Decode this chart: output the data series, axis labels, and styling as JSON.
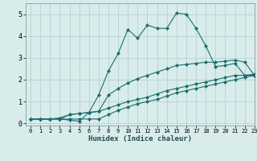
{
  "xlabel": "Humidex (Indice chaleur)",
  "ylabel": "",
  "bg_color": "#d8ecec",
  "grid_color": "#b0cccc",
  "line_color": "#1a6e6a",
  "xlim": [
    -0.5,
    23
  ],
  "ylim": [
    -0.1,
    5.5
  ],
  "xticks": [
    0,
    1,
    2,
    3,
    4,
    5,
    6,
    7,
    8,
    9,
    10,
    11,
    12,
    13,
    14,
    15,
    16,
    17,
    18,
    19,
    20,
    21,
    22,
    23
  ],
  "yticks": [
    0,
    1,
    2,
    3,
    4,
    5
  ],
  "lines": [
    {
      "x": [
        0,
        1,
        2,
        3,
        4,
        5,
        6,
        7,
        8,
        9,
        10,
        11,
        12,
        13,
        14,
        15,
        16,
        17,
        18,
        19,
        20,
        21,
        22,
        23
      ],
      "y": [
        0.2,
        0.2,
        0.2,
        0.2,
        0.15,
        0.1,
        0.5,
        1.3,
        2.4,
        3.2,
        4.3,
        3.9,
        4.5,
        4.35,
        4.35,
        5.05,
        5.0,
        4.35,
        3.55,
        2.6,
        2.65,
        2.75,
        2.2,
        2.25
      ]
    },
    {
      "x": [
        0,
        1,
        2,
        3,
        4,
        5,
        6,
        7,
        8,
        9,
        10,
        11,
        12,
        13,
        14,
        15,
        16,
        17,
        18,
        19,
        20,
        21,
        22,
        23
      ],
      "y": [
        0.2,
        0.2,
        0.2,
        0.2,
        0.4,
        0.45,
        0.5,
        0.55,
        1.3,
        1.6,
        1.85,
        2.05,
        2.2,
        2.35,
        2.5,
        2.65,
        2.7,
        2.75,
        2.8,
        2.8,
        2.85,
        2.9,
        2.8,
        2.2
      ]
    },
    {
      "x": [
        0,
        1,
        2,
        3,
        4,
        5,
        6,
        7,
        8,
        9,
        10,
        11,
        12,
        13,
        14,
        15,
        16,
        17,
        18,
        19,
        20,
        21,
        22,
        23
      ],
      "y": [
        0.2,
        0.2,
        0.2,
        0.25,
        0.4,
        0.45,
        0.5,
        0.55,
        0.7,
        0.85,
        1.0,
        1.1,
        1.2,
        1.35,
        1.5,
        1.6,
        1.7,
        1.8,
        1.9,
        2.0,
        2.1,
        2.2,
        2.2,
        2.2
      ]
    },
    {
      "x": [
        0,
        1,
        2,
        3,
        4,
        5,
        6,
        7,
        8,
        9,
        10,
        11,
        12,
        13,
        14,
        15,
        16,
        17,
        18,
        19,
        20,
        21,
        22,
        23
      ],
      "y": [
        0.2,
        0.2,
        0.2,
        0.2,
        0.2,
        0.2,
        0.2,
        0.2,
        0.4,
        0.6,
        0.75,
        0.9,
        1.0,
        1.1,
        1.25,
        1.4,
        1.5,
        1.6,
        1.7,
        1.8,
        1.9,
        2.0,
        2.1,
        2.2
      ]
    }
  ]
}
